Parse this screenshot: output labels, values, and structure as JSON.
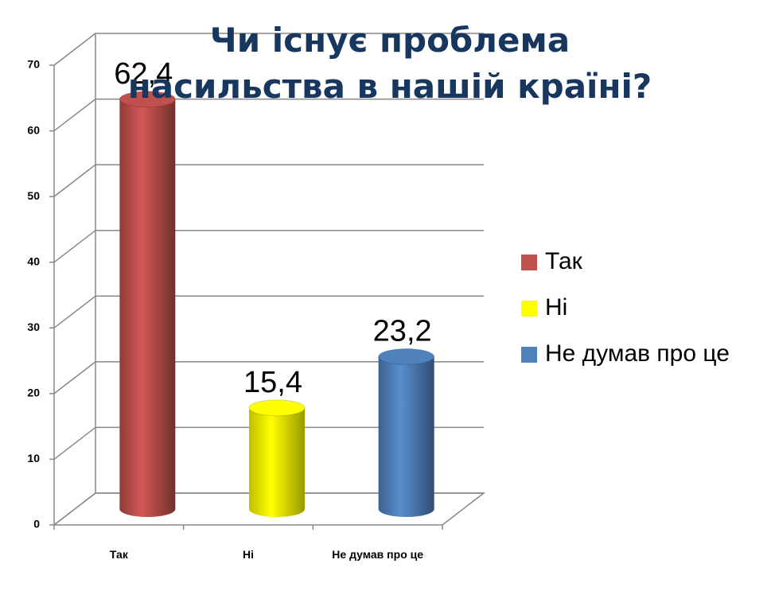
{
  "chart_data": {
    "type": "bar3d",
    "title": "Чи існує проблема насильства в нашій країні?",
    "categories": [
      "Так",
      "Ні",
      "Не думав про це"
    ],
    "values": [
      62.4,
      15.4,
      23.2
    ],
    "value_labels": [
      "62,4",
      "15,4",
      "23,2"
    ],
    "colors": [
      "#c0504d",
      "#ffff00",
      "#4f81bd"
    ],
    "ylim": [
      0,
      70
    ],
    "yticks": [
      0,
      10,
      20,
      30,
      40,
      50,
      60,
      70
    ],
    "grid": true,
    "legend": "right"
  }
}
